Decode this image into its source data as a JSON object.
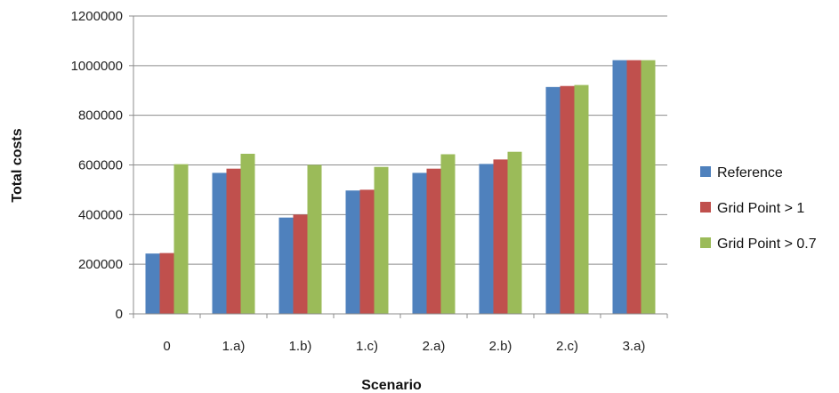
{
  "chart_data": {
    "type": "bar",
    "categories": [
      "0",
      "1.a)",
      "1.b)",
      "1.c)",
      "2.a)",
      "2.b)",
      "2.c)",
      "3.a)"
    ],
    "series": [
      {
        "name": "Reference",
        "color": "#4F81BD",
        "values": [
          243000,
          568000,
          388000,
          497000,
          568000,
          604000,
          914000,
          1022000
        ]
      },
      {
        "name": "Grid Point > 1",
        "color": "#C0504D",
        "values": [
          245000,
          585000,
          400000,
          500000,
          585000,
          622000,
          918000,
          1022000
        ]
      },
      {
        "name": "Grid Point > 0.7",
        "color": "#9BBB59",
        "values": [
          603000,
          645000,
          600000,
          592000,
          643000,
          653000,
          922000,
          1022000
        ]
      }
    ],
    "xlabel": "Scenario",
    "ylabel": "Total costs",
    "ylim": [
      0,
      1200000
    ],
    "yticks": [
      "0",
      "200000",
      "400000",
      "600000",
      "800000",
      "1000000",
      "1200000"
    ],
    "grid": true,
    "legend_position": "right"
  }
}
